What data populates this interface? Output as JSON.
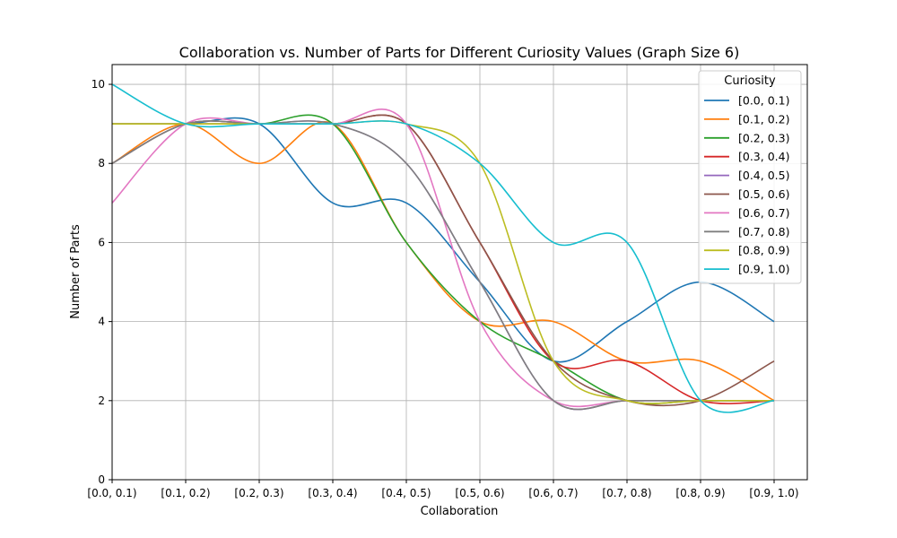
{
  "chart_data": {
    "type": "line",
    "title": "Collaboration vs. Number of Parts for Different Curiosity Values (Graph Size 6)",
    "xlabel": "Collaboration",
    "ylabel": "Number of Parts",
    "categories": [
      "[0.0, 0.1)",
      "[0.1, 0.2)",
      "[0.2, 0.3)",
      "[0.3, 0.4)",
      "[0.4, 0.5)",
      "[0.5, 0.6)",
      "[0.6, 0.7)",
      "[0.7, 0.8)",
      "[0.8, 0.9)",
      "[0.9, 1.0)"
    ],
    "ylim": [
      0,
      10.5
    ],
    "yticks": [
      0,
      2,
      4,
      6,
      8,
      10
    ],
    "grid": true,
    "smooth": true,
    "legend": {
      "title": "Curiosity",
      "placement": "top-right"
    },
    "series": [
      {
        "name": "[0.0, 0.1)",
        "color": "#1f77b4",
        "values": [
          9,
          9,
          9,
          7,
          7,
          5,
          3,
          4,
          5,
          4
        ]
      },
      {
        "name": "[0.1, 0.2)",
        "color": "#ff7f0e",
        "values": [
          8,
          9,
          8,
          9,
          6,
          4,
          4,
          3,
          3,
          2
        ]
      },
      {
        "name": "[0.2, 0.3)",
        "color": "#2ca02c",
        "values": [
          9,
          9,
          9,
          9,
          6,
          4,
          3,
          2,
          2,
          2
        ]
      },
      {
        "name": "[0.3, 0.4)",
        "color": "#d62728",
        "values": [
          9,
          9,
          9,
          9,
          9,
          6,
          3,
          3,
          2,
          2
        ]
      },
      {
        "name": "[0.4, 0.5)",
        "color": "#9467bd",
        "values": [
          8,
          9,
          9,
          9,
          8,
          5,
          2,
          2,
          2,
          2
        ]
      },
      {
        "name": "[0.5, 0.6)",
        "color": "#8c564b",
        "values": [
          8,
          9,
          9,
          9,
          9,
          6,
          3,
          2,
          2,
          3
        ]
      },
      {
        "name": "[0.6, 0.7)",
        "color": "#e377c2",
        "values": [
          7,
          9,
          9,
          9,
          9,
          4,
          2,
          2,
          2,
          2
        ]
      },
      {
        "name": "[0.7, 0.8)",
        "color": "#7f7f7f",
        "values": [
          8,
          9,
          9,
          9,
          8,
          5,
          2,
          2,
          2,
          2
        ]
      },
      {
        "name": "[0.8, 0.9)",
        "color": "#bcbd22",
        "values": [
          9,
          9,
          9,
          9,
          9,
          8,
          3,
          2,
          2,
          2
        ]
      },
      {
        "name": "[0.9, 1.0)",
        "color": "#17becf",
        "values": [
          10,
          9,
          9,
          9,
          9,
          8,
          6,
          6,
          2,
          2
        ]
      }
    ]
  }
}
